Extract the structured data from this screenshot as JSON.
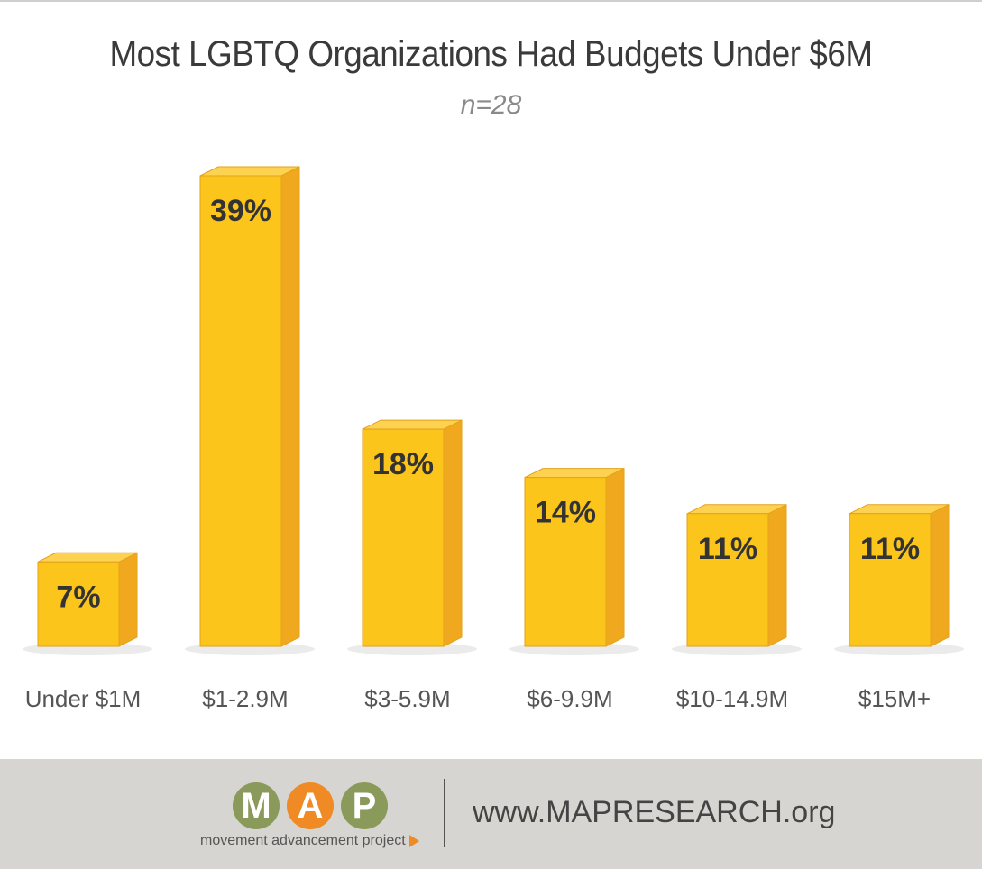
{
  "chart_data": {
    "type": "bar",
    "title": "Most LGBTQ Organizations Had Budgets Under $6M",
    "subtitle": "n=28",
    "categories": [
      "Under $1M",
      "$1-2.9M",
      "$3-5.9M",
      "$6-9.9M",
      "$10-14.9M",
      "$15M+"
    ],
    "values": [
      7,
      39,
      18,
      14,
      11,
      11
    ],
    "value_labels": [
      "7%",
      "39%",
      "18%",
      "14%",
      "11%",
      "11%"
    ],
    "unit": "%",
    "ylim": [
      0,
      40
    ],
    "grid": false,
    "style": "3d-bars",
    "colors": {
      "bar_front": "#fcc51b",
      "bar_side": "#f0a91e",
      "bar_top": "#fdd250",
      "bar_edge": "#e3a21a",
      "label": "#333333",
      "tick": "#555555"
    }
  },
  "footer": {
    "logo_letters": [
      "M",
      "A",
      "P"
    ],
    "logo_colors": [
      "#8a9a5b",
      "#f08a24",
      "#8a9a5b"
    ],
    "logo_tagline": "movement advancement project",
    "url": "www.MAPRESEARCH.org"
  }
}
